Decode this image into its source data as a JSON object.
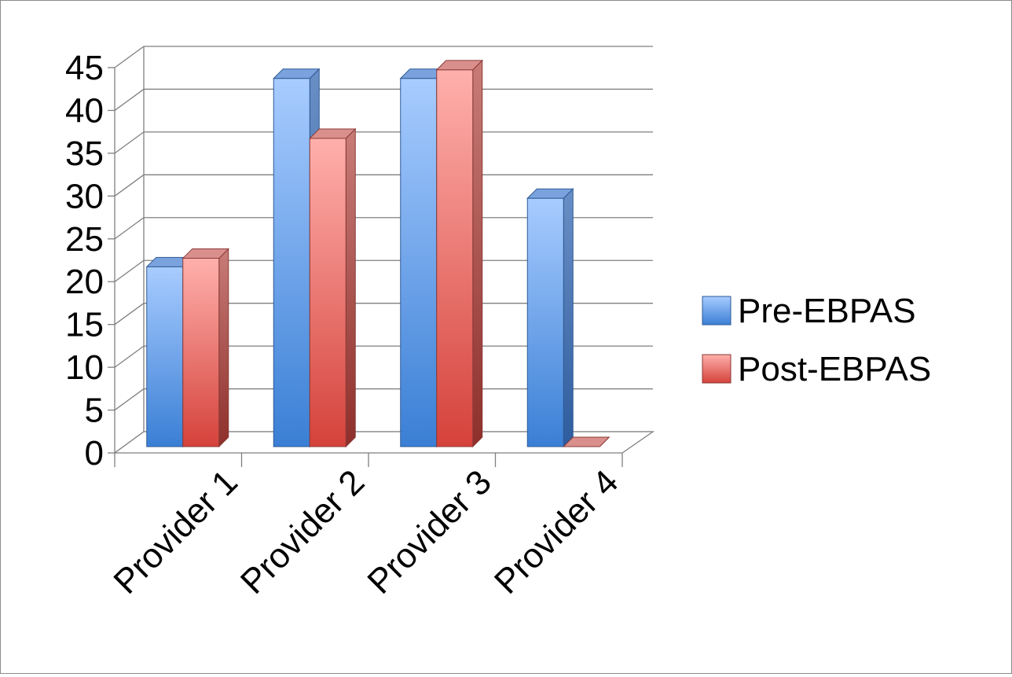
{
  "chart_data": {
    "type": "bar",
    "title": "",
    "xlabel": "",
    "ylabel": "",
    "categories": [
      "Provider 1",
      "Provider 2",
      "Provider 3",
      "Provider 4"
    ],
    "series": [
      {
        "name": "Pre-EBPAS",
        "values": [
          21,
          43,
          43,
          29
        ],
        "color": "#4a86dc"
      },
      {
        "name": "Post-EBPAS",
        "values": [
          22,
          36,
          44,
          0
        ],
        "color": "#e0504a"
      }
    ],
    "ylim": [
      0,
      45
    ],
    "yticks": [
      "0",
      "5",
      "10",
      "15",
      "20",
      "25",
      "30",
      "35",
      "40",
      "45"
    ],
    "grid": true,
    "style": "3d-clustered-column",
    "legend": {
      "position": "right"
    }
  }
}
